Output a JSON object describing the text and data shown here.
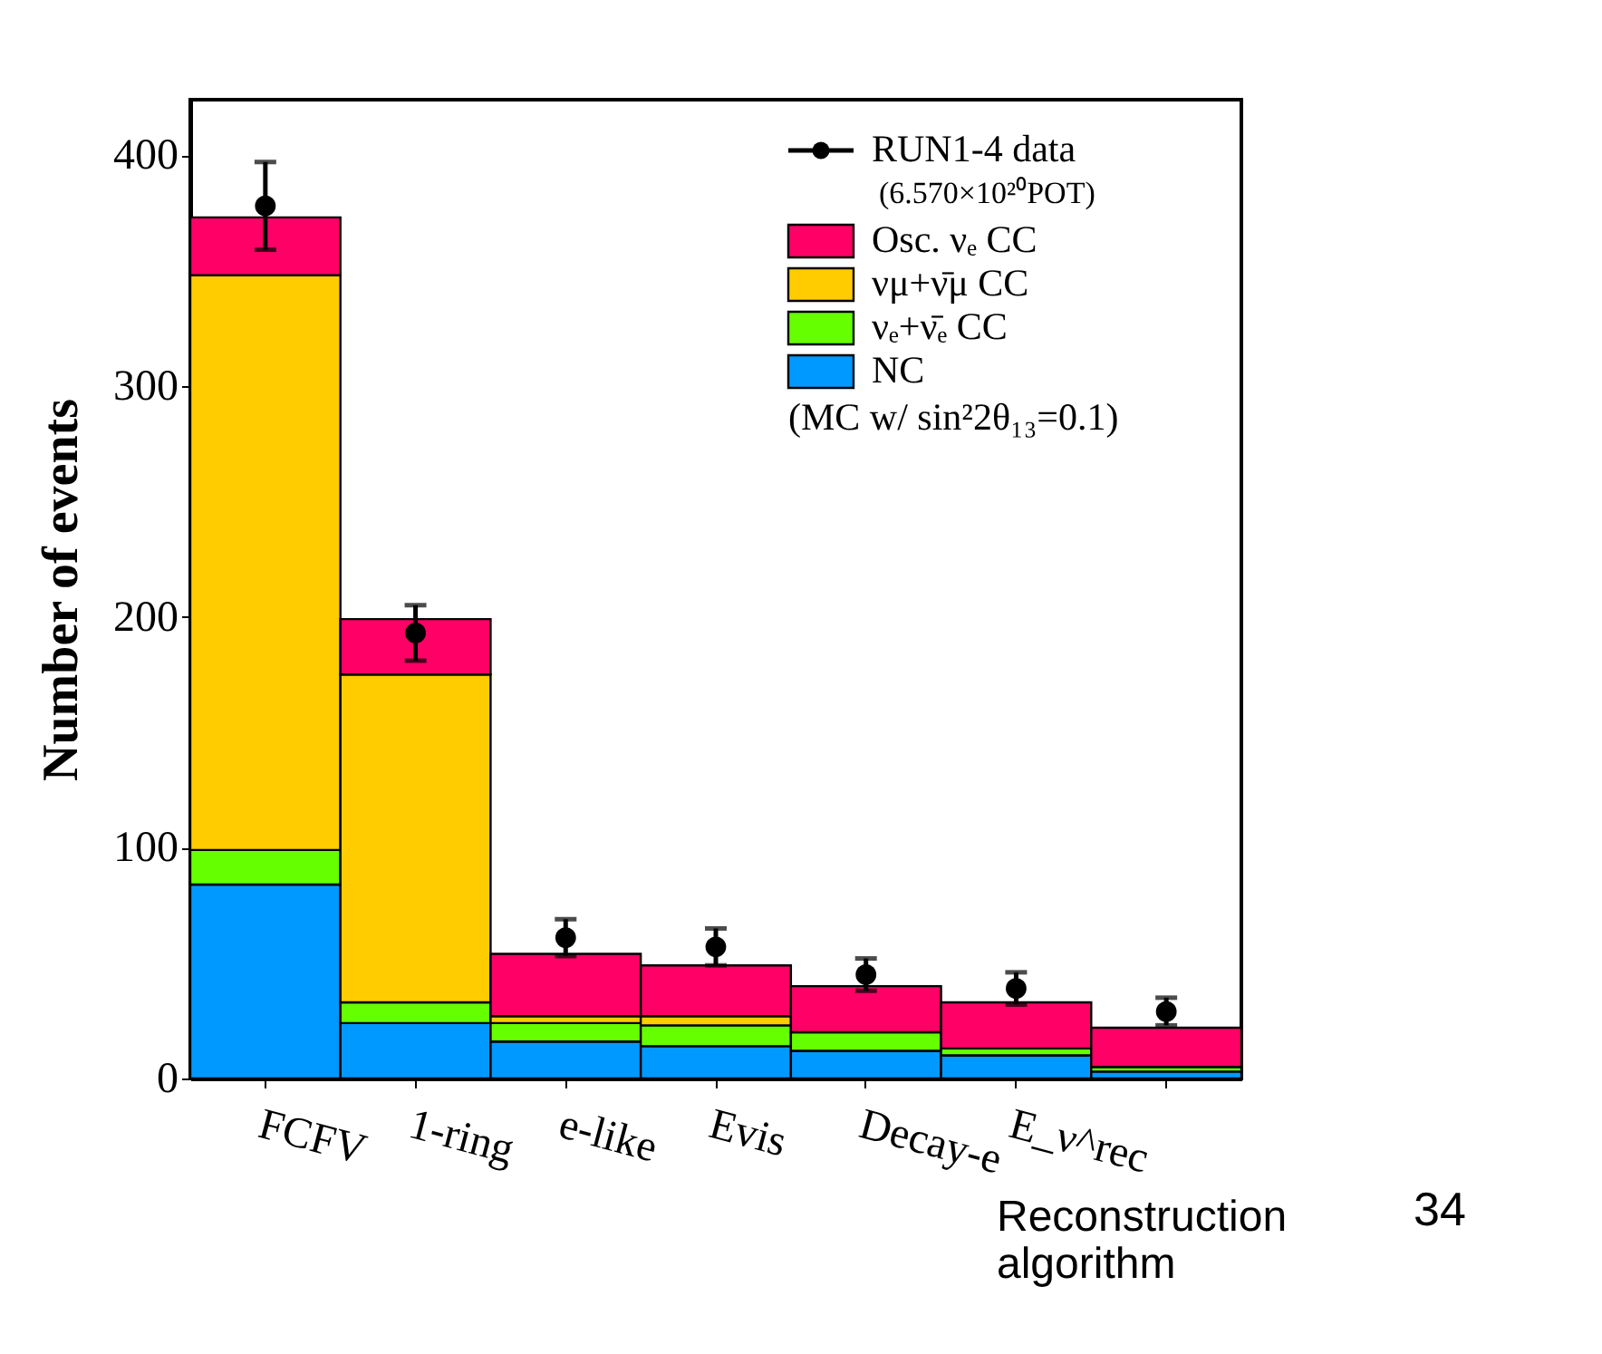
{
  "chart_data": {
    "type": "bar",
    "stacked": true,
    "ylabel": "Number of events",
    "categories": [
      "FCFV",
      "1-ring",
      "e-like",
      "Evis",
      "Decay-e",
      "E_ν^rec",
      null
    ],
    "ylim": [
      0,
      424
    ],
    "yticks": [
      0,
      100,
      200,
      300,
      400
    ],
    "legend": "top right",
    "grid": false,
    "series": [
      {
        "name": "NC",
        "color": "#0099ff",
        "values": [
          84,
          24,
          16,
          14,
          12,
          10,
          3
        ]
      },
      {
        "name": "νₑ+ν̄ₑ CC",
        "color": "#66ff00",
        "values": [
          15,
          9,
          8,
          9,
          8,
          3,
          2
        ]
      },
      {
        "name": "νμ+ν̄μ CC",
        "color": "#ffcc00",
        "values": [
          249,
          142,
          3,
          4,
          null,
          null,
          null
        ]
      },
      {
        "name": "Osc. νₑ CC",
        "color": "#ff0066",
        "values": [
          25,
          24,
          27,
          22,
          20,
          20,
          17
        ]
      },
      {
        "name": "RUN1-4 data",
        "type": "scatter",
        "color": "#000000",
        "marker": "circle",
        "values": [
          378,
          193,
          61,
          57,
          45,
          39,
          29
        ],
        "errors": [
          19,
          12,
          8,
          8,
          7,
          7,
          6
        ]
      }
    ],
    "annotations": [
      "(6.570×10²⁰POT)",
      "(MC w/ sin²2θ₁₃=0.1)",
      "Reconstruction algorithm",
      "34"
    ]
  }
}
